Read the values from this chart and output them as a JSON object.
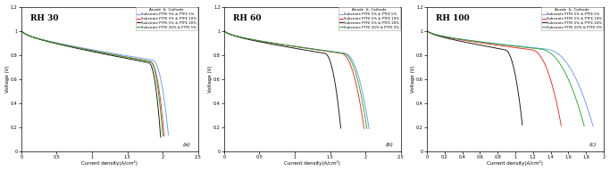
{
  "subplots": [
    {
      "title": "RH 30",
      "label": "(a)",
      "xlim": [
        0,
        2.5
      ],
      "ylim": [
        0,
        1.2
      ],
      "xticks": [
        0,
        0.5,
        1.0,
        1.5,
        2.0,
        2.5
      ],
      "xtick_labels": [
        "0",
        "0.5",
        "1",
        "1.5",
        "2",
        "2.5"
      ],
      "yticks": [
        0,
        0.2,
        0.4,
        0.6,
        0.8,
        1.0,
        1.2
      ],
      "ytick_labels": [
        "0",
        "0.2",
        "0.4",
        "0.6",
        "0.8",
        "1",
        "1.2"
      ],
      "xlabel": "Current density(A/cm²)",
      "ylabel": "Voltage (V)",
      "curves": [
        {
          "color": "#6699ff",
          "x_max": 2.08,
          "drop_start": 1.85,
          "ohmic": 0.18,
          "act": 0.07
        },
        {
          "color": "#ff2222",
          "x_max": 2.02,
          "drop_start": 1.82,
          "ohmic": 0.19,
          "act": 0.07
        },
        {
          "color": "#111111",
          "x_max": 1.97,
          "drop_start": 1.8,
          "ohmic": 0.2,
          "act": 0.07
        },
        {
          "color": "#22aa22",
          "x_max": 2.0,
          "drop_start": 1.82,
          "ohmic": 0.19,
          "act": 0.07
        }
      ]
    },
    {
      "title": "RH 60",
      "label": "(b)",
      "xlim": [
        0,
        2.5
      ],
      "ylim": [
        0,
        1.2
      ],
      "xticks": [
        0,
        0.5,
        1.0,
        1.5,
        2.0,
        2.5
      ],
      "xtick_labels": [
        "0",
        "0.5",
        "1",
        "1.5",
        "2",
        "2.5"
      ],
      "yticks": [
        0,
        0.2,
        0.4,
        0.6,
        0.8,
        1.0,
        1.2
      ],
      "ytick_labels": [
        "0",
        "0.2",
        "0.4",
        "0.6",
        "0.8",
        "1",
        "1.2"
      ],
      "xlabel": "Current density(A/cm²)",
      "ylabel": "Voltage (V)",
      "curves": [
        {
          "color": "#6699ff",
          "x_max": 2.05,
          "drop_start": 1.7,
          "ohmic": 0.14,
          "act": 0.06
        },
        {
          "color": "#ff2222",
          "x_max": 1.98,
          "drop_start": 1.65,
          "ohmic": 0.14,
          "act": 0.06
        },
        {
          "color": "#111111",
          "x_max": 1.65,
          "drop_start": 1.42,
          "ohmic": 0.14,
          "act": 0.06
        },
        {
          "color": "#22aa22",
          "x_max": 2.02,
          "drop_start": 1.68,
          "ohmic": 0.14,
          "act": 0.06
        }
      ]
    },
    {
      "title": "RH 100",
      "label": "(c)",
      "xlim": [
        0,
        2.0
      ],
      "ylim": [
        0,
        1.2
      ],
      "xticks": [
        0,
        0.2,
        0.4,
        0.6,
        0.8,
        1.0,
        1.2,
        1.4,
        1.6,
        1.8,
        2.0
      ],
      "xtick_labels": [
        "0",
        "0.2",
        "0.4",
        "0.6",
        "0.8",
        "1",
        "1.2",
        "1.4",
        "1.6",
        "1.8",
        "2"
      ],
      "yticks": [
        0,
        0.2,
        0.4,
        0.6,
        0.8,
        1.0,
        1.2
      ],
      "ytick_labels": [
        "0",
        "0.2",
        "0.4",
        "0.6",
        "0.8",
        "1",
        "1.2"
      ],
      "xlabel": "Current density(A/cm²)",
      "ylabel": "Voltage (V)",
      "curves": [
        {
          "color": "#6699ff",
          "x_max": 1.88,
          "drop_start": 1.35,
          "ohmic": 0.12,
          "act": 0.06
        },
        {
          "color": "#ff2222",
          "x_max": 1.52,
          "drop_start": 1.18,
          "ohmic": 0.12,
          "act": 0.06
        },
        {
          "color": "#111111",
          "x_max": 1.08,
          "drop_start": 0.88,
          "ohmic": 0.12,
          "act": 0.06
        },
        {
          "color": "#22aa22",
          "x_max": 1.78,
          "drop_start": 1.28,
          "ohmic": 0.12,
          "act": 0.06
        }
      ]
    }
  ],
  "legend_title": "Anode  &  Cathode",
  "legend_entries": [
    "Substrate PTFE 5% & PTFE 5%",
    "Substrate PTFE 5% & PTFE 10%",
    "Substrate PTFE 5% & PTFE 20%",
    "Substrate PTFE 20% & PTFE 5%"
  ],
  "legend_colors": [
    "#6699ff",
    "#ff2222",
    "#111111",
    "#22aa22"
  ],
  "background_color": "#ffffff"
}
